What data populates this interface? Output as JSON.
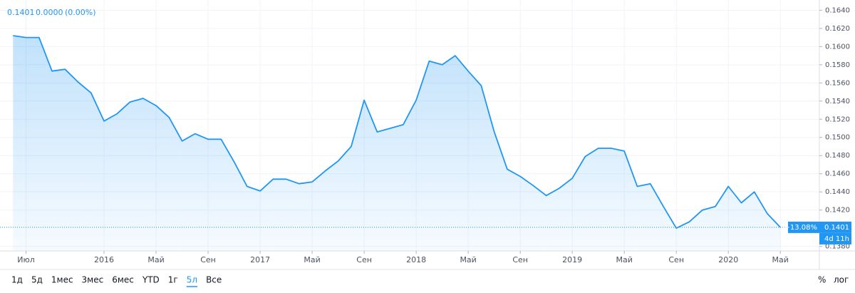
{
  "chart_data": {
    "type": "line",
    "legend": {
      "price": "0.1401",
      "change": "0.0000",
      "change_pct": "(0.00%)"
    },
    "change_label": "−13.08%",
    "countdown": "4d 11h",
    "color": "#2196f3",
    "grid": true,
    "x": [
      "2015-06",
      "2015-07",
      "2015-08",
      "2015-09",
      "2015-10",
      "2015-11",
      "2015-12",
      "2016-01",
      "2016-02",
      "2016-03",
      "2016-04",
      "2016-05",
      "2016-06",
      "2016-07",
      "2016-08",
      "2016-09",
      "2016-10",
      "2016-11",
      "2016-12",
      "2017-01",
      "2017-02",
      "2017-03",
      "2017-04",
      "2017-05",
      "2017-06",
      "2017-07",
      "2017-08",
      "2017-09",
      "2017-10",
      "2017-11",
      "2017-12",
      "2018-01",
      "2018-02",
      "2018-03",
      "2018-04",
      "2018-05",
      "2018-06",
      "2018-07",
      "2018-08",
      "2018-09",
      "2018-10",
      "2018-11",
      "2018-12",
      "2019-01",
      "2019-02",
      "2019-03",
      "2019-04",
      "2019-05",
      "2019-06",
      "2019-07",
      "2019-08",
      "2019-09",
      "2019-10",
      "2019-11",
      "2019-12",
      "2020-01",
      "2020-02",
      "2020-03",
      "2020-04",
      "2020-05"
    ],
    "values": [
      0.1612,
      0.161,
      0.161,
      0.1573,
      0.1575,
      0.1561,
      0.1549,
      0.1518,
      0.1526,
      0.1539,
      0.1543,
      0.1535,
      0.1522,
      0.1496,
      0.1504,
      0.1498,
      0.1498,
      0.1473,
      0.1446,
      0.1441,
      0.1454,
      0.1454,
      0.1449,
      0.1451,
      0.1463,
      0.1474,
      0.149,
      0.1541,
      0.1506,
      0.151,
      0.1514,
      0.1541,
      0.1584,
      0.158,
      0.159,
      0.1573,
      0.1557,
      0.1506,
      0.1465,
      0.1457,
      0.1447,
      0.1436,
      0.1444,
      0.1455,
      0.1479,
      0.1488,
      0.1488,
      0.1485,
      0.1446,
      0.1449,
      0.1424,
      0.14,
      0.1407,
      0.142,
      0.1424,
      0.1446,
      0.1428,
      0.144,
      0.1416,
      0.1401
    ],
    "xlim": [
      "2015-05",
      "2020-08"
    ],
    "xticks": [
      {
        "value": "2015-07",
        "label": "Июл"
      },
      {
        "value": "2016-01",
        "label": "2016"
      },
      {
        "value": "2016-05",
        "label": "Май"
      },
      {
        "value": "2016-09",
        "label": "Сен"
      },
      {
        "value": "2017-01",
        "label": "2017"
      },
      {
        "value": "2017-05",
        "label": "Май"
      },
      {
        "value": "2017-09",
        "label": "Сен"
      },
      {
        "value": "2018-01",
        "label": "2018"
      },
      {
        "value": "2018-05",
        "label": "Май"
      },
      {
        "value": "2018-09",
        "label": "Сен"
      },
      {
        "value": "2019-01",
        "label": "2019"
      },
      {
        "value": "2019-05",
        "label": "Май"
      },
      {
        "value": "2019-09",
        "label": "Сен"
      },
      {
        "value": "2020-01",
        "label": "2020"
      },
      {
        "value": "2020-05",
        "label": "Май"
      }
    ],
    "ylim": [
      0.1375,
      0.1645
    ],
    "yticks": [
      {
        "value": 0.164,
        "label": "0.1640"
      },
      {
        "value": 0.162,
        "label": "0.1620"
      },
      {
        "value": 0.16,
        "label": "0.1600"
      },
      {
        "value": 0.158,
        "label": "0.1580"
      },
      {
        "value": 0.156,
        "label": "0.1560"
      },
      {
        "value": 0.154,
        "label": "0.1540"
      },
      {
        "value": 0.152,
        "label": "0.1520"
      },
      {
        "value": 0.15,
        "label": "0.1500"
      },
      {
        "value": 0.148,
        "label": "0.1480"
      },
      {
        "value": 0.146,
        "label": "0.1460"
      },
      {
        "value": 0.144,
        "label": "0.1440"
      },
      {
        "value": 0.142,
        "label": "0.1420"
      },
      {
        "value": 0.138,
        "label": "0.1380"
      }
    ],
    "ranges": [
      "1д",
      "5д",
      "1мес",
      "3мес",
      "6мес",
      "YTD",
      "1г",
      "5л",
      "Все"
    ],
    "active_range": "5л",
    "options": [
      "%",
      "лог"
    ]
  }
}
